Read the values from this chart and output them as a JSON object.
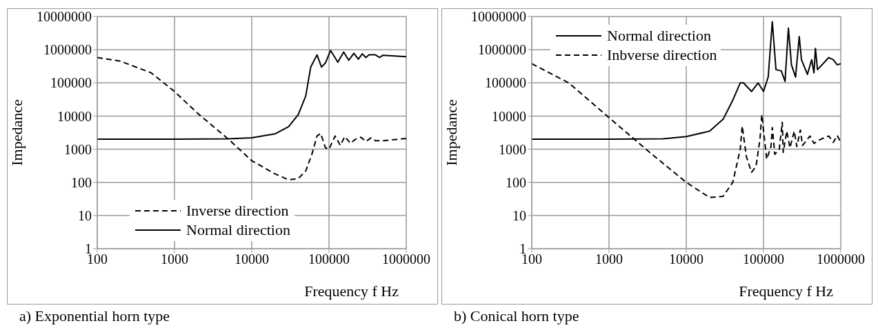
{
  "chart_data": [
    {
      "type": "line",
      "xlabel": "Frequency f Hz",
      "ylabel": "Impedance",
      "log": "xy",
      "grid": true,
      "legend": "bottom",
      "xlim": [
        100,
        1000000
      ],
      "xticks": [
        100,
        1000,
        10000,
        100000,
        1000000
      ],
      "ylim": [
        1,
        10000000
      ],
      "yticks": [
        1,
        10,
        100,
        1000,
        10000,
        100000,
        1000000,
        10000000
      ],
      "annotations": [
        "a)  Exponential horn type"
      ],
      "series": [
        {
          "name": "Inverse direction",
          "color": "#000000",
          "line_style": "dashed",
          "x": [
            100,
            200,
            500,
            1000,
            2000,
            5000,
            10000,
            20000,
            30000,
            40000,
            50000,
            60000,
            70000,
            78000,
            90000,
            100000,
            120000,
            140000,
            160000,
            190000,
            220000,
            260000,
            300000,
            350000,
            400000,
            500000,
            1000000
          ],
          "values": [
            580000,
            450000,
            200000,
            55000,
            12000,
            2000,
            450,
            180,
            120,
            130,
            220,
            700,
            2500,
            3000,
            1100,
            1000,
            2500,
            1300,
            2400,
            1500,
            2000,
            2300,
            1700,
            2200,
            1800,
            1800,
            2100
          ]
        },
        {
          "name": "Normal direction",
          "color": "#000000",
          "line_style": "solid",
          "x": [
            100,
            1000,
            5000,
            10000,
            20000,
            30000,
            40000,
            50000,
            58000,
            70000,
            80000,
            90000,
            105000,
            130000,
            155000,
            180000,
            210000,
            240000,
            270000,
            300000,
            330000,
            400000,
            450000,
            500000,
            1000000
          ],
          "values": [
            2000,
            2000,
            2050,
            2200,
            2900,
            4800,
            11000,
            40000,
            300000,
            700000,
            300000,
            400000,
            950000,
            420000,
            850000,
            480000,
            780000,
            520000,
            750000,
            580000,
            700000,
            700000,
            580000,
            680000,
            620000
          ]
        }
      ]
    },
    {
      "type": "line",
      "xlabel": "Frequency f Hz",
      "ylabel": "Impedance",
      "log": "xy",
      "grid": true,
      "legend": "top left",
      "xlim": [
        100,
        1000000
      ],
      "xticks": [
        100,
        1000,
        10000,
        100000,
        1000000
      ],
      "ylim": [
        1,
        10000000
      ],
      "yticks": [
        1,
        10,
        100,
        1000,
        10000,
        100000,
        1000000,
        10000000
      ],
      "annotations": [
        "b) Conical horn type"
      ],
      "series": [
        {
          "name": "Normal direction",
          "color": "#000000",
          "line_style": "solid",
          "x": [
            100,
            1000,
            5000,
            10000,
            20000,
            30000,
            40000,
            50000,
            55000,
            70000,
            85000,
            100000,
            115000,
            130000,
            145000,
            170000,
            190000,
            210000,
            230000,
            260000,
            290000,
            310000,
            370000,
            420000,
            450000,
            470000,
            500000,
            700000,
            800000,
            900000,
            1000000
          ],
          "values": [
            2000,
            2000,
            2050,
            2400,
            3500,
            8000,
            30000,
            100000,
            100000,
            55000,
            100000,
            55000,
            150000,
            7000000,
            250000,
            230000,
            110000,
            4500000,
            350000,
            150000,
            2500000,
            500000,
            180000,
            500000,
            200000,
            1100000,
            250000,
            580000,
            500000,
            350000,
            380000
          ]
        },
        {
          "name": "Inbverse direction",
          "color": "#000000",
          "line_style": "dashed",
          "x": [
            100,
            300,
            1000,
            3000,
            10000,
            20000,
            30000,
            40000,
            50000,
            53000,
            60000,
            70000,
            80000,
            90000,
            95000,
            110000,
            125000,
            130000,
            140000,
            160000,
            175000,
            180000,
            200000,
            220000,
            250000,
            270000,
            300000,
            320000,
            400000,
            450000,
            550000,
            700000,
            800000,
            900000,
            1000000
          ],
          "values": [
            380000,
            100000,
            9000,
            1000,
            100,
            35,
            38,
            100,
            1000,
            5000,
            600,
            200,
            300,
            2000,
            11000,
            500,
            1200,
            4500,
            700,
            1000,
            6500,
            800,
            3500,
            1100,
            3500,
            1200,
            3800,
            1300,
            2500,
            1500,
            2000,
            2500,
            1600,
            2600,
            1600
          ]
        }
      ]
    }
  ]
}
